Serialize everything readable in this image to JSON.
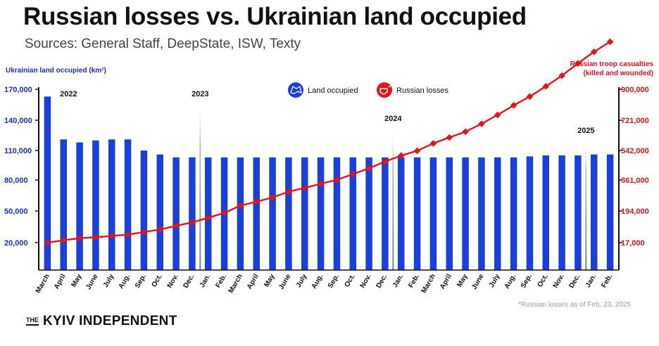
{
  "header": {
    "title": "Russian losses vs. Ukrainian land occupied",
    "subtitle": "Sources: General Staff, DeepState, ISW, Texty"
  },
  "footer": {
    "brand_the": "THE",
    "brand_name": "KYIV INDEPENDENT",
    "note": "*Russian losses as of Feb. 23, 2025"
  },
  "colors": {
    "bar": "#1b3fdc",
    "line": "#e0141b",
    "axis_left": "#1a2fb5",
    "axis_right": "#d7131a"
  },
  "chart_data": {
    "type": "bar",
    "left_axis": {
      "label": "Ukrainian land occupied (km²)",
      "ticks": [
        "20,000",
        "50,000",
        "80,000",
        "110,000",
        "140,000",
        "170,000"
      ],
      "tick_values": [
        20000,
        50000,
        80000,
        110000,
        140000,
        170000
      ],
      "ylim": [
        0,
        170000
      ]
    },
    "right_axis": {
      "label_line1": "Russian troop casualties",
      "label_line2": "(killed and wounded)",
      "ticks": [
        "17,000",
        "194,000",
        "361,000",
        "542,000",
        "721,000",
        "900,000"
      ],
      "tick_values": [
        17000,
        194000,
        361000,
        542000,
        721000,
        900000
      ]
    },
    "year_markers": [
      {
        "label": "2022",
        "at_index": 0
      },
      {
        "label": "2023",
        "at_index": 10
      },
      {
        "label": "2024",
        "at_index": 22
      },
      {
        "label": "2025",
        "at_index": 34
      }
    ],
    "categories": [
      "March",
      "April",
      "May",
      "June",
      "July",
      "Aug.",
      "Sep.",
      "Oct.",
      "Nov.",
      "Dec.",
      "Jan.",
      "Feb.",
      "March",
      "April",
      "May",
      "June",
      "July",
      "Aug.",
      "Sep.",
      "Oct.",
      "Nov.",
      "Dec.",
      "Jan.",
      "Feb.",
      "March",
      "April",
      "May",
      "June",
      "July",
      "Aug.",
      "Sep.",
      "Oct.",
      "Nov.",
      "Dec.",
      "Jan.",
      "Feb."
    ],
    "series": [
      {
        "name": "Land occupied",
        "axis": "left",
        "values": [
          163000,
          121000,
          118000,
          120000,
          121000,
          121000,
          110000,
          106000,
          103000,
          103000,
          103000,
          103000,
          103000,
          103000,
          103000,
          103000,
          103000,
          103000,
          103000,
          103000,
          103000,
          103000,
          103000,
          103000,
          103000,
          103000,
          103000,
          103000,
          103000,
          103000,
          104000,
          105000,
          105000,
          105000,
          106000,
          106000
        ]
      },
      {
        "name": "Russian losses",
        "axis": "right",
        "values": [
          17000,
          30000,
          42000,
          47000,
          54000,
          62000,
          76000,
          90000,
          111000,
          130000,
          156000,
          183000,
          223000,
          244000,
          267000,
          298000,
          318000,
          341000,
          362000,
          397000,
          433000,
          474000,
          511000,
          540000,
          584000,
          619000,
          653000,
          700000,
          752000,
          807000,
          858000,
          917000,
          979000,
          1050000,
          1117000,
          1175000
        ]
      }
    ],
    "legend": {
      "position": "top-center",
      "entries": [
        "Land occupied",
        "Russian losses"
      ]
    },
    "grid": false
  }
}
